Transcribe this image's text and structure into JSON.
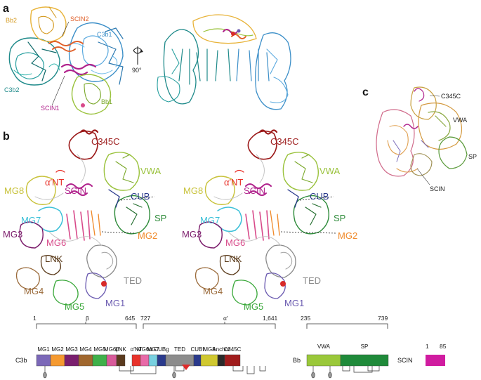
{
  "panels": {
    "a": "a",
    "b": "b",
    "c": "c"
  },
  "panel_a": {
    "labels": {
      "bb2": "Bb2",
      "scin2": "SCIN2",
      "c3b1": "C3b1",
      "c3b2": "C3b2",
      "scin1": "SCIN1",
      "bb1": "Bb1"
    },
    "rotation": "90°",
    "colors": {
      "bb": "#e8b339",
      "scin2": "#e0602a",
      "c3b1": "#3c8fc8",
      "c3b2": "#1f8a8a",
      "scin1": "#b0228c",
      "bb1": "#9ac23c"
    }
  },
  "panel_b": {
    "labels": {
      "c345c": "C345C",
      "alpha_nt": "α′NT",
      "vwa": "VWA",
      "mg8": "MG8",
      "scin": "SCIN",
      "cub": "CUB",
      "sp": "SP",
      "mg7": "MG7",
      "mg2": "MG2",
      "mg3": "MG3",
      "mg6": "MG6",
      "lnk": "LNK",
      "ted": "TED",
      "mg4": "MG4",
      "mg5": "MG5",
      "mg1": "MG1"
    },
    "colors": {
      "c345c": "#9c1a1a",
      "alpha_nt": "#e8322a",
      "vwa": "#9ac23c",
      "mg8": "#c8c23a",
      "scin": "#b0228c",
      "cub": "#2a3a8c",
      "sp": "#2e8b3a",
      "mg7": "#3cc0d8",
      "mg2": "#f08a2a",
      "mg3": "#7a1a6a",
      "mg6": "#d84a8a",
      "lnk": "#5a3a1a",
      "ted": "#8a8a8a",
      "mg4": "#9a6a3a",
      "mg5": "#3aa83a",
      "mg1": "#6a5ab0"
    }
  },
  "panel_c": {
    "labels": {
      "c345c": "C345C",
      "vwa": "VWA",
      "sp": "SP",
      "scin": "SCIN"
    }
  },
  "domain_map": {
    "c3b": {
      "name": "C3b",
      "beta_label": "β",
      "alpha_label": "α′",
      "beta_start": "1",
      "beta_end": "645",
      "alpha_start": "727",
      "alpha_end": "1,641",
      "segments": [
        {
          "label": "MG1",
          "color": "#7b68b8"
        },
        {
          "label": "MG2",
          "color": "#f59a30"
        },
        {
          "label": "MG3",
          "color": "#7a1f6e"
        },
        {
          "label": "MG4",
          "color": "#a0672e"
        },
        {
          "label": "MG5",
          "color": "#3fb04a"
        },
        {
          "label": "MG6β",
          "color": "#d85a9a"
        },
        {
          "label": "LNK",
          "color": "#5a3a1e"
        },
        {
          "label": "α′NT",
          "color": "#e8322a"
        },
        {
          "label": "MG6α",
          "color": "#e86aa8"
        },
        {
          "label": "MG7",
          "color": "#78d0e0"
        },
        {
          "label": "CUBg",
          "color": "#2a3a8c"
        },
        {
          "label": "TED",
          "color": "#8c8c8c"
        },
        {
          "label": "CUBf",
          "color": "#2a3a8c"
        },
        {
          "label": "MG8",
          "color": "#d0c830"
        },
        {
          "label": "Anchor",
          "color": "#2a2a2a"
        },
        {
          "label": "C345C",
          "color": "#a01c1c"
        }
      ]
    },
    "bb": {
      "name": "Bb",
      "start": "235",
      "end": "739",
      "segments": [
        {
          "label": "VWA",
          "color": "#9ac83a"
        },
        {
          "label": "SP",
          "color": "#1f8a3a"
        }
      ]
    },
    "scin": {
      "name": "SCIN",
      "start": "1",
      "end": "85",
      "color": "#d01ca0"
    }
  }
}
